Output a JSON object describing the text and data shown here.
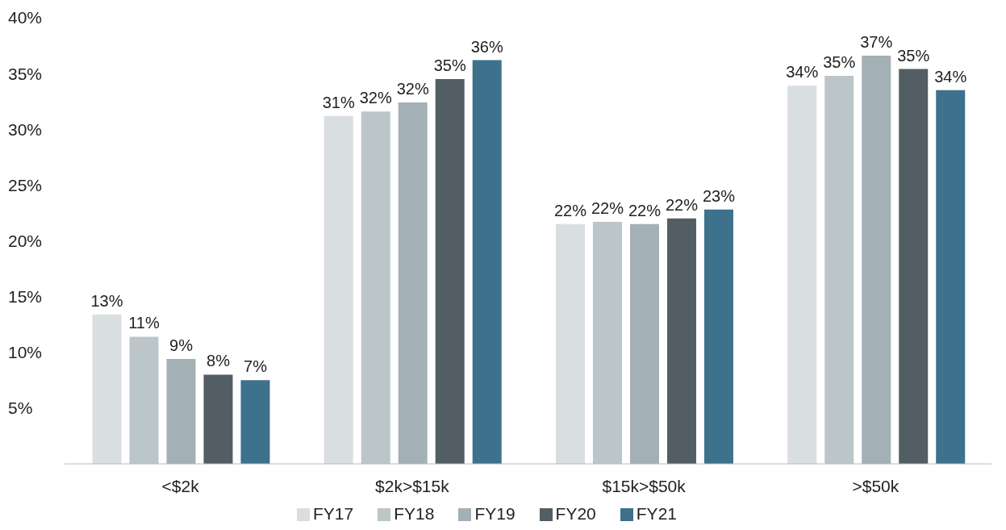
{
  "chart_data": {
    "type": "bar",
    "categories": [
      "<$2k",
      "$2k>$15k",
      "$15k>$50k",
      ">$50k"
    ],
    "series": [
      {
        "name": "FY17",
        "color": "#d9dee1",
        "values": [
          13.4,
          31.2,
          21.5,
          33.9
        ],
        "value_labels": [
          "13%",
          "31%",
          "22%",
          "34%"
        ]
      },
      {
        "name": "FY18",
        "color": "#bcc6c9",
        "values": [
          11.4,
          31.6,
          21.7,
          34.8
        ],
        "value_labels": [
          "11%",
          "32%",
          "22%",
          "35%"
        ]
      },
      {
        "name": "FY19",
        "color": "#a3b0b6",
        "values": [
          9.4,
          32.4,
          21.5,
          36.6
        ],
        "value_labels": [
          "9%",
          "32%",
          "22%",
          "37%"
        ]
      },
      {
        "name": "FY20",
        "color": "#525e63",
        "values": [
          8.0,
          34.5,
          22.0,
          35.4
        ],
        "value_labels": [
          "8%",
          "35%",
          "22%",
          "35%"
        ]
      },
      {
        "name": "FY21",
        "color": "#3e718c",
        "values": [
          7.5,
          36.2,
          22.8,
          33.5
        ],
        "value_labels": [
          "7%",
          "36%",
          "23%",
          "34%"
        ]
      }
    ],
    "ylim": [
      0,
      40
    ],
    "yticks": [
      {
        "value": 5,
        "label": "5%"
      },
      {
        "value": 10,
        "label": "10%"
      },
      {
        "value": 15,
        "label": "15%"
      },
      {
        "value": 20,
        "label": "20%"
      },
      {
        "value": 25,
        "label": "25%"
      },
      {
        "value": 30,
        "label": "30%"
      },
      {
        "value": 35,
        "label": "35%"
      },
      {
        "value": 40,
        "label": "40%"
      }
    ],
    "grid": false,
    "legend": "bottom"
  }
}
